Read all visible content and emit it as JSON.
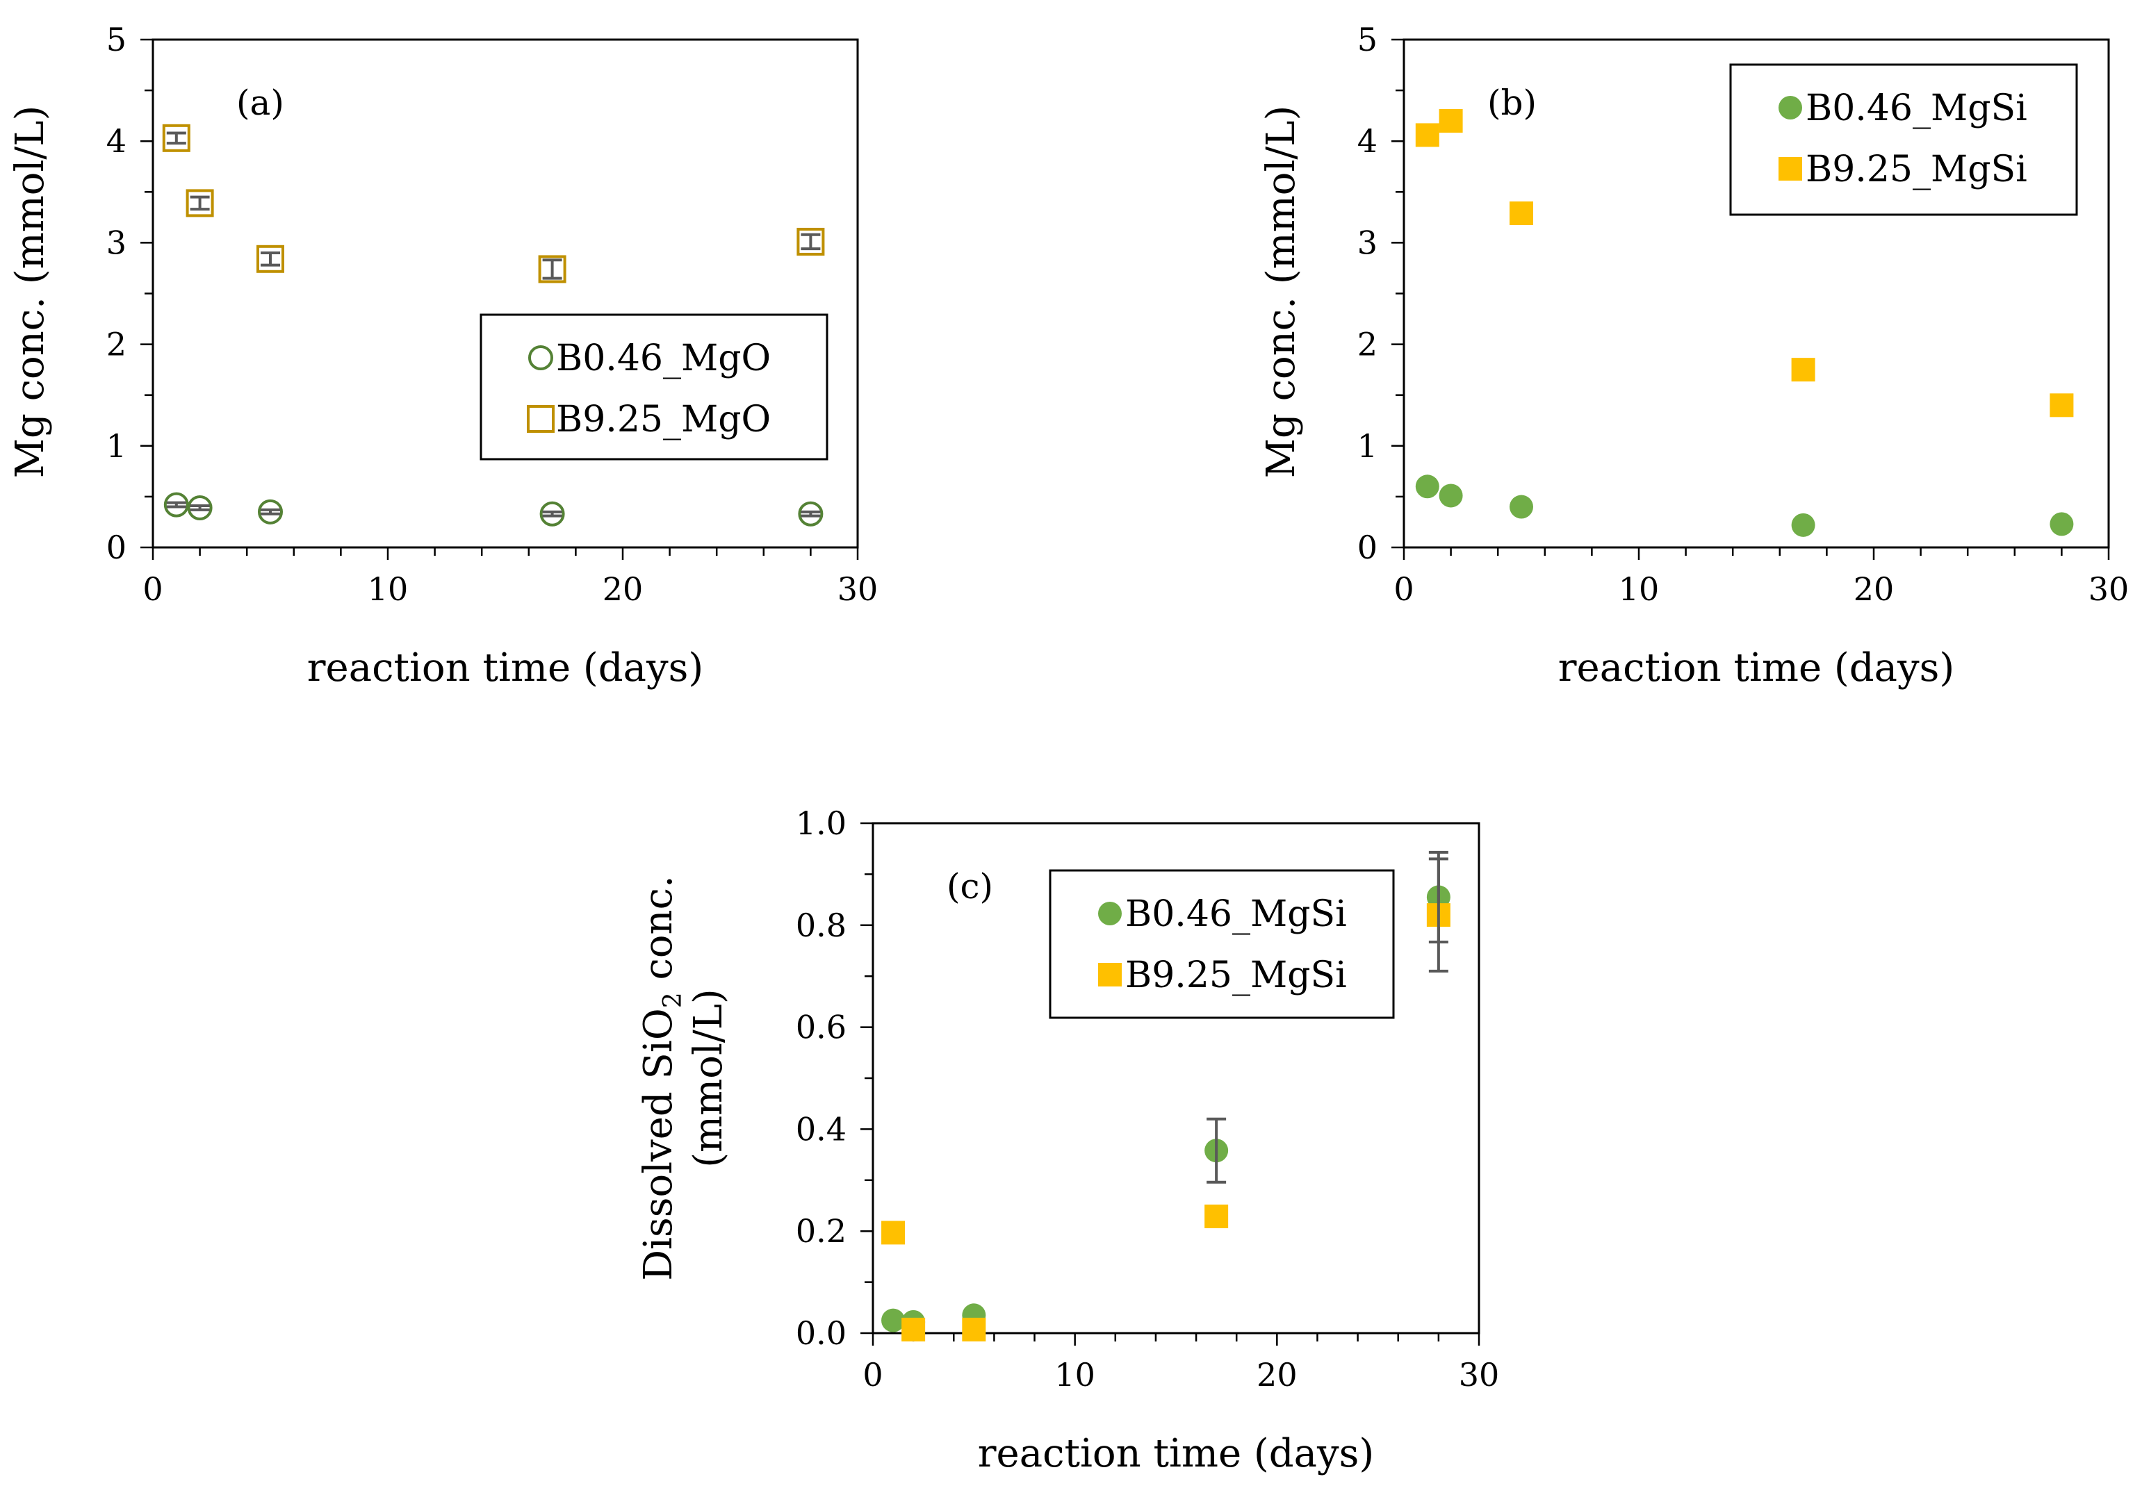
{
  "colors": {
    "green": "#70AD47",
    "green_hollow": "#548235",
    "yellow": "#FFC000",
    "gold_hollow": "#BF9000",
    "errorbar": "#595959",
    "axis": "#000000"
  },
  "chart_data": [
    {
      "id": "a",
      "type": "scatter",
      "panel_label": "(a)",
      "xlabel": "reaction time (days)",
      "ylabel": "Mg conc. (mmol/L)",
      "xlim": [
        0,
        30
      ],
      "ylim": [
        0,
        5
      ],
      "xticks": [
        0,
        10,
        20,
        30
      ],
      "yticks": [
        0,
        1,
        2,
        3,
        4,
        5
      ],
      "x_tick_labels": [
        "0",
        "10",
        "20",
        "30"
      ],
      "y_tick_labels": [
        "0",
        "1",
        "2",
        "3",
        "4",
        "5"
      ],
      "legend_position": "center-right",
      "series": [
        {
          "name": "B0.46_MgO",
          "marker": "circle-hollow",
          "color": "#548235",
          "x": [
            1,
            2,
            5,
            17,
            28
          ],
          "y": [
            0.42,
            0.39,
            0.35,
            0.33,
            0.33
          ],
          "err": [
            0.02,
            0.02,
            0.02,
            0.02,
            0.02
          ]
        },
        {
          "name": "B9.25_MgO",
          "marker": "square-hollow",
          "color": "#BF9000",
          "x": [
            1,
            2,
            5,
            17,
            28
          ],
          "y": [
            4.03,
            3.39,
            2.84,
            2.74,
            3.01
          ],
          "err": [
            0.05,
            0.06,
            0.06,
            0.09,
            0.07
          ]
        }
      ]
    },
    {
      "id": "b",
      "type": "scatter",
      "panel_label": "(b)",
      "xlabel": "reaction time (days)",
      "ylabel": "Mg conc. (mmol/L)",
      "xlim": [
        0,
        30
      ],
      "ylim": [
        0,
        5
      ],
      "xticks": [
        0,
        10,
        20,
        30
      ],
      "yticks": [
        0,
        1,
        2,
        3,
        4,
        5
      ],
      "x_tick_labels": [
        "0",
        "10",
        "20",
        "30"
      ],
      "y_tick_labels": [
        "0",
        "1",
        "2",
        "3",
        "4",
        "5"
      ],
      "legend_position": "top-right",
      "series": [
        {
          "name": "B0.46_MgSi",
          "marker": "circle-filled",
          "color": "#70AD47",
          "x": [
            1,
            2,
            5,
            17,
            28
          ],
          "y": [
            0.6,
            0.51,
            0.4,
            0.22,
            0.23
          ],
          "err": [
            0,
            0,
            0,
            0,
            0
          ]
        },
        {
          "name": "B9.25_MgSi",
          "marker": "square-filled",
          "color": "#FFC000",
          "x": [
            1,
            2,
            5,
            17,
            28
          ],
          "y": [
            4.06,
            4.2,
            3.29,
            1.75,
            1.4
          ],
          "err": [
            0,
            0,
            0,
            0,
            0
          ]
        }
      ]
    },
    {
      "id": "c",
      "type": "scatter",
      "panel_label": "(c)",
      "xlabel": "reaction time (days)",
      "ylabel_line1_pre": "Dissolved SiO",
      "ylabel_line1_sub": "2",
      "ylabel_line1_post": " conc.",
      "ylabel_line2": "(mmol/L)",
      "xlim": [
        0,
        30
      ],
      "ylim": [
        0,
        1
      ],
      "xticks": [
        0,
        10,
        20,
        30
      ],
      "yticks": [
        0,
        0.2,
        0.4,
        0.6,
        0.8,
        1.0
      ],
      "x_tick_labels": [
        "0",
        "10",
        "20",
        "30"
      ],
      "y_tick_labels": [
        "0.0",
        "0.2",
        "0.4",
        "0.6",
        "0.8",
        "1.0"
      ],
      "legend_position": "top-center",
      "series": [
        {
          "name": "B0.46_MgSi",
          "marker": "circle-filled",
          "color": "#70AD47",
          "x": [
            1,
            2,
            5,
            17,
            28
          ],
          "y": [
            0.025,
            0.022,
            0.035,
            0.358,
            0.855
          ],
          "err": [
            0,
            0,
            0,
            0.062,
            0.088
          ]
        },
        {
          "name": "B9.25_MgSi",
          "marker": "square-filled",
          "color": "#FFC000",
          "x": [
            1,
            2,
            5,
            17,
            28
          ],
          "y": [
            0.197,
            0.007,
            0.007,
            0.229,
            0.82
          ],
          "err": [
            0,
            0,
            0,
            0,
            0.11
          ]
        }
      ]
    }
  ]
}
